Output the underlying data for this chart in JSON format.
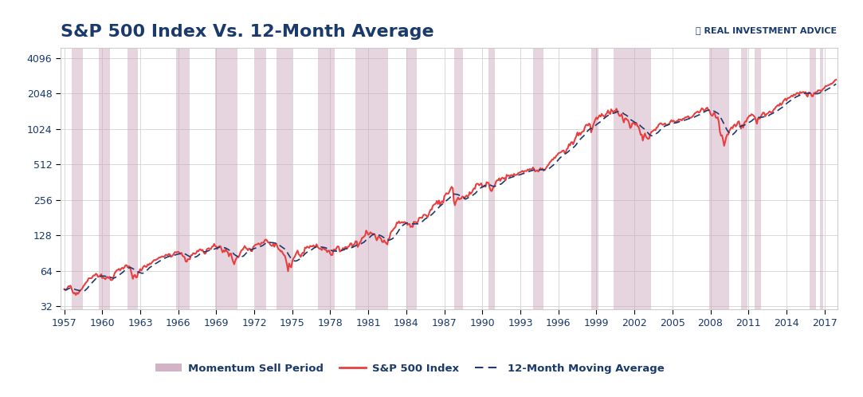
{
  "title": "S&P 500 Index Vs. 12-Month Average",
  "title_color": "#1a3a6b",
  "title_fontsize": 16,
  "background_color": "#ffffff",
  "plot_bg_color": "#ffffff",
  "grid_color": "#d8d8d8",
  "x_start": 1957,
  "x_end": 2018,
  "x_ticks": [
    1957,
    1960,
    1963,
    1966,
    1969,
    1972,
    1975,
    1978,
    1981,
    1984,
    1987,
    1990,
    1993,
    1996,
    1999,
    2002,
    2005,
    2008,
    2011,
    2014,
    2017
  ],
  "y_ticks": [
    32,
    64,
    128,
    256,
    512,
    1024,
    2048,
    4096
  ],
  "y_min": 30,
  "y_max": 5000,
  "sp500_color": "#e84040",
  "sp500_linewidth": 1.5,
  "ma_color": "#1f3a6e",
  "ma_linewidth": 1.2,
  "shade_color": "#c8a0b8",
  "shade_alpha": 0.45,
  "sell_periods": [
    [
      1957.58,
      1958.5
    ],
    [
      1959.75,
      1960.58
    ],
    [
      1962.0,
      1962.83
    ],
    [
      1965.83,
      1966.92
    ],
    [
      1968.92,
      1970.67
    ],
    [
      1972.08,
      1972.92
    ],
    [
      1973.75,
      1975.0
    ],
    [
      1977.0,
      1978.33
    ],
    [
      1980.0,
      1982.58
    ],
    [
      1984.0,
      1984.83
    ],
    [
      1987.75,
      1988.5
    ],
    [
      1990.5,
      1991.0
    ],
    [
      1994.0,
      1994.83
    ],
    [
      1998.58,
      1999.17
    ],
    [
      2000.33,
      2003.33
    ],
    [
      2007.92,
      2009.5
    ],
    [
      2010.42,
      2010.92
    ],
    [
      2011.5,
      2012.0
    ],
    [
      2015.83,
      2016.33
    ],
    [
      2016.67,
      2016.92
    ]
  ],
  "legend_shade_label": "Momentum Sell Period",
  "legend_sp500_label": "S&P 500 Index",
  "legend_ma_label": "12-Month Moving Average"
}
